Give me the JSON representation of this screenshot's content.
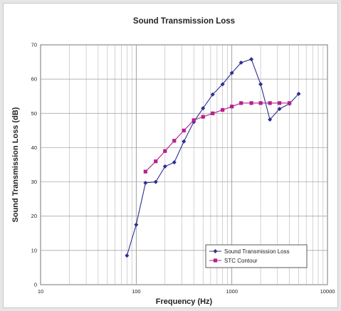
{
  "chart_data": {
    "type": "line",
    "title": "Sound Transmission Loss",
    "xlabel": "Frequency (Hz)",
    "ylabel": "Sound Transmission Loss (dB)",
    "xscale": "log",
    "xlim": [
      10,
      10000
    ],
    "ylim": [
      0,
      70
    ],
    "xticks": [
      10,
      100,
      1000,
      10000
    ],
    "xtick_labels": [
      "10",
      "100",
      "1000",
      "10000"
    ],
    "yticks": [
      0,
      10,
      20,
      30,
      40,
      50,
      60,
      70
    ],
    "ytick_labels": [
      "0",
      "10",
      "20",
      "30",
      "40",
      "50",
      "60",
      "70"
    ],
    "grid": true,
    "legend_position": "bottom-right",
    "series": [
      {
        "name": "Sound Transmission Loss",
        "color": "#2b2f8f",
        "marker": "diamond",
        "x": [
          80,
          100,
          125,
          160,
          200,
          250,
          315,
          400,
          500,
          630,
          800,
          1000,
          1250,
          1600,
          2000,
          2500,
          3150,
          4000,
          5000
        ],
        "y": [
          8.5,
          17.5,
          29.7,
          30,
          34.5,
          35.7,
          41.8,
          47.5,
          51.5,
          55.5,
          58.5,
          61.8,
          64.8,
          65.8,
          58.5,
          48.2,
          51.3,
          52.8,
          55.7
        ]
      },
      {
        "name": "STC Contour",
        "color": "#b3218e",
        "marker": "square",
        "x": [
          125,
          160,
          200,
          250,
          315,
          400,
          500,
          630,
          800,
          1000,
          1250,
          1600,
          2000,
          2500,
          3150,
          4000
        ],
        "y": [
          33,
          36,
          39,
          42,
          45,
          48,
          49,
          50,
          51,
          52,
          53,
          53,
          53,
          53,
          53,
          53
        ]
      }
    ]
  }
}
